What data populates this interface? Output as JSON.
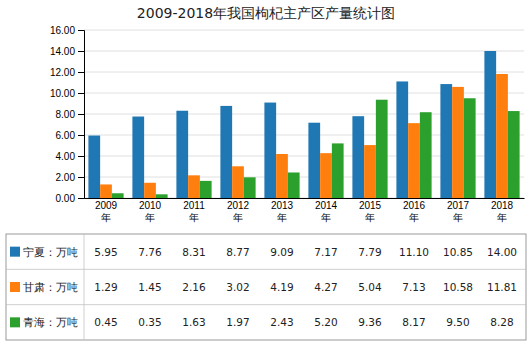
{
  "chart_data": {
    "type": "bar",
    "title": "2009-2018年我国枸杞主产区产量统计图",
    "categories": [
      "2009\n年",
      "2010\n年",
      "2011\n年",
      "2012\n年",
      "2013\n年",
      "2014\n年",
      "2015\n年",
      "2016\n年",
      "2017\n年",
      "2018\n年"
    ],
    "series": [
      {
        "name": "宁夏：万吨",
        "values": [
          5.95,
          7.76,
          8.31,
          8.77,
          9.09,
          7.17,
          7.79,
          11.1,
          10.85,
          14.0
        ],
        "value_labels": [
          "5.95",
          "7.76",
          "8.31",
          "8.77",
          "9.09",
          "7.17",
          "7.79",
          "11.10",
          "10.85",
          "14.00"
        ]
      },
      {
        "name": "甘肃：万吨",
        "values": [
          1.29,
          1.45,
          2.16,
          3.02,
          4.19,
          4.27,
          5.04,
          7.13,
          10.58,
          11.81
        ],
        "value_labels": [
          "1.29",
          "1.45",
          "2.16",
          "3.02",
          "4.19",
          "4.27",
          "5.04",
          "7.13",
          "10.58",
          "11.81"
        ]
      },
      {
        "name": "青海：万吨",
        "values": [
          0.45,
          0.35,
          1.63,
          1.97,
          2.43,
          5.2,
          9.36,
          8.17,
          9.5,
          8.28
        ],
        "value_labels": [
          "0.45",
          "0.35",
          "1.63",
          "1.97",
          "2.43",
          "5.20",
          "9.36",
          "8.17",
          "9.50",
          "8.28"
        ]
      }
    ],
    "ylim": [
      0,
      16.0
    ],
    "yticks": [
      {
        "value": 0,
        "label": "0.00"
      },
      {
        "value": 2,
        "label": "2.00"
      },
      {
        "value": 4,
        "label": "4.00"
      },
      {
        "value": 6,
        "label": "6.00"
      },
      {
        "value": 8,
        "label": "8.00"
      },
      {
        "value": 10,
        "label": "10.00"
      },
      {
        "value": 12,
        "label": "12.00"
      },
      {
        "value": 14,
        "label": "14.00"
      },
      {
        "value": 16,
        "label": "16.00"
      }
    ],
    "grid": true,
    "data_labels": true
  }
}
